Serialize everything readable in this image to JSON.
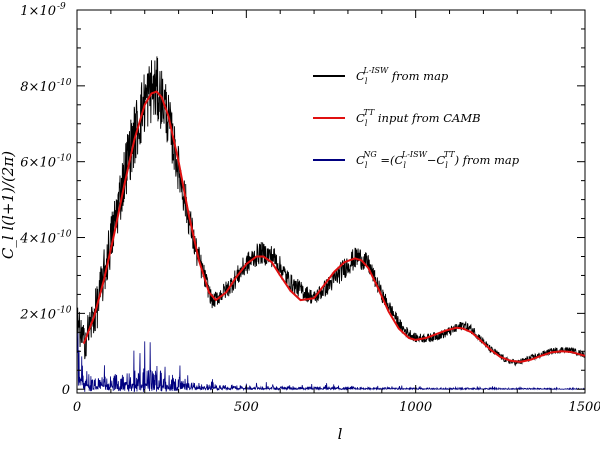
{
  "chart_data": {
    "type": "line",
    "title": "",
    "xlabel": "l",
    "ylabel": "C_l l(l+1)/(2π)",
    "xlim": [
      0,
      1500
    ],
    "ylim": [
      -1e-11,
      1e-09
    ],
    "x_ticks": [
      0,
      500,
      1000,
      1500
    ],
    "x_tick_labels": [
      "0",
      "500",
      "1000",
      "1500"
    ],
    "y_ticks": [
      0,
      2e-10,
      4e-10,
      6e-10,
      8e-10,
      1e-09
    ],
    "y_tick_labels": [
      "0",
      "2×10",
      "4×10",
      "6×10",
      "8×10",
      "1×10"
    ],
    "y_tick_exponents": [
      "",
      "-10",
      "-10",
      "-10",
      "-10",
      "-9"
    ],
    "legend_position": "top-right",
    "colors": {
      "map": "#000000",
      "camb": "#e01010",
      "ng": "#000080"
    },
    "series": [
      {
        "name": "C_l^{L-ISW} from map",
        "legend_main": "C",
        "legend_sub": "l",
        "legend_sup": "L-ISW",
        "legend_tail": " from map",
        "color": "#000000",
        "x": [
          0,
          20,
          60,
          100,
          150,
          200,
          220,
          235,
          260,
          300,
          350,
          400,
          450,
          500,
          540,
          580,
          630,
          700,
          750,
          800,
          830,
          860,
          900,
          960,
          1000,
          1040,
          1080,
          1120,
          1140,
          1170,
          1220,
          1270,
          1300,
          1350,
          1400,
          1440,
          1470,
          1500
        ],
        "y": [
          1.8e-10,
          1.2e-10,
          2.2e-10,
          3.9e-10,
          6.1e-10,
          7.6e-10,
          7.9e-10,
          7.9e-10,
          7.5e-10,
          5.8e-10,
          3.7e-10,
          2.3e-10,
          2.7e-10,
          3.3e-10,
          3.6e-10,
          3.5e-10,
          2.8e-10,
          2.4e-10,
          2.8e-10,
          3.3e-10,
          3.5e-10,
          3.3e-10,
          2.5e-10,
          1.6e-10,
          1.35e-10,
          1.35e-10,
          1.45e-10,
          1.6e-10,
          1.7e-10,
          1.55e-10,
          1.05e-10,
          7.5e-11,
          7e-11,
          8.5e-11,
          1e-10,
          1.05e-10,
          1e-10,
          9e-11
        ],
        "noise": [
          4.5e-11,
          5e-11,
          6e-11,
          7e-11,
          8e-11,
          9e-11,
          9e-11,
          9e-11,
          8e-11,
          6e-11,
          4e-11,
          2e-11,
          2.5e-11,
          3e-11,
          3e-11,
          3e-11,
          2.5e-11,
          2e-11,
          2.5e-11,
          3e-11,
          3e-11,
          2.5e-11,
          2e-11,
          1.5e-11,
          1.2e-11,
          1.2e-11,
          1.2e-11,
          1.3e-11,
          1.3e-11,
          1.2e-11,
          1e-11,
          8e-12,
          8e-12,
          8e-12,
          8e-12,
          8e-12,
          8e-12,
          8e-12
        ]
      },
      {
        "name": "C_l^{TT} input from CAMB",
        "legend_main": "C",
        "legend_sub": "l",
        "legend_sup": "TT",
        "legend_tail": " input from CAMB",
        "color": "#e01010",
        "x": [
          20,
          50,
          80,
          110,
          140,
          170,
          200,
          220,
          235,
          250,
          270,
          300,
          330,
          360,
          390,
          410,
          440,
          470,
          500,
          530,
          550,
          575,
          600,
          630,
          660,
          700,
          730,
          760,
          790,
          820,
          840,
          860,
          890,
          920,
          950,
          980,
          1000,
          1030,
          1060,
          1090,
          1120,
          1140,
          1165,
          1190,
          1220,
          1250,
          1280,
          1310,
          1340,
          1370,
          1400,
          1430,
          1460,
          1480,
          1500
        ],
        "y": [
          1.2e-10,
          1.9e-10,
          2.9e-10,
          4.1e-10,
          5.4e-10,
          6.6e-10,
          7.5e-10,
          7.8e-10,
          7.85e-10,
          7.7e-10,
          7.2e-10,
          6e-10,
          4.6e-10,
          3.4e-10,
          2.55e-10,
          2.35e-10,
          2.55e-10,
          2.95e-10,
          3.3e-10,
          3.5e-10,
          3.5e-10,
          3.35e-10,
          3e-10,
          2.6e-10,
          2.35e-10,
          2.4e-10,
          2.75e-10,
          3.1e-10,
          3.35e-10,
          3.45e-10,
          3.4e-10,
          3.2e-10,
          2.65e-10,
          2.05e-10,
          1.6e-10,
          1.35e-10,
          1.3e-10,
          1.35e-10,
          1.45e-10,
          1.55e-10,
          1.62e-10,
          1.6e-10,
          1.5e-10,
          1.3e-10,
          1.05e-10,
          8.5e-11,
          7.5e-11,
          7.2e-11,
          7.8e-11,
          8.8e-11,
          9.7e-11,
          1e-10,
          9.8e-11,
          9.3e-11,
          8.8e-11
        ]
      },
      {
        "name": "C_l^{NG} = (C_l^{L-ISW} - C_l^{TT}) from map",
        "legend_main": "C",
        "legend_sub": "l",
        "legend_sup": "NG",
        "legend_tail": " =(C",
        "legend_tail2_sup": "L-ISW",
        "legend_tail3": "−C",
        "legend_tail3_sup": "TT",
        "legend_tail4": ") from map",
        "color": "#000080",
        "x": [
          0,
          20,
          50,
          100,
          150,
          200,
          250,
          300,
          350,
          400,
          500,
          700,
          900,
          1100,
          1300,
          1500
        ],
        "envelope": [
          2.7e-10,
          9e-11,
          6e-11,
          5.5e-11,
          7.5e-11,
          9e-11,
          8.5e-11,
          5.5e-11,
          3e-11,
          2e-11,
          1.5e-11,
          1.2e-11,
          8e-12,
          6e-12,
          5e-12,
          4e-12
        ]
      }
    ]
  }
}
